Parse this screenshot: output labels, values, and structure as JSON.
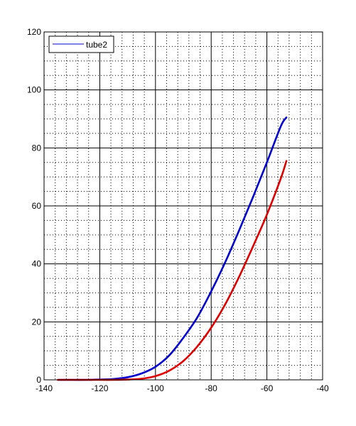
{
  "chart_data": {
    "type": "line",
    "title": "",
    "xlabel": "",
    "ylabel": "",
    "xlim": [
      -140,
      -40
    ],
    "ylim": [
      0,
      120
    ],
    "x_ticks": [
      -140,
      -120,
      -100,
      -80,
      -60,
      -40
    ],
    "y_ticks": [
      0,
      20,
      40,
      60,
      80,
      100,
      120
    ],
    "x_tick_labels": [
      "-140",
      "-120",
      "-100",
      "-80",
      "-60",
      "-40"
    ],
    "y_tick_labels": [
      "0",
      "20",
      "40",
      "60",
      "80",
      "100",
      "120"
    ],
    "grid": "major solid, minor dotted",
    "legend": {
      "placement": "top-left",
      "entries": [
        "tube2"
      ]
    },
    "series": [
      {
        "name": "tube2",
        "color": "#0000cc",
        "x": [
          -135,
          -130,
          -125,
          -120,
          -115,
          -110,
          -105,
          -100,
          -95,
          -90,
          -85,
          -80,
          -75,
          -70,
          -65,
          -60,
          -55,
          -53
        ],
        "y": [
          0,
          0,
          0,
          0.1,
          0.3,
          0.9,
          2.2,
          4.5,
          8.5,
          14.5,
          21.5,
          30.5,
          40.5,
          51.5,
          63.0,
          75.0,
          87.5,
          90.5
        ]
      },
      {
        "color": "#dd0000",
        "x": [
          -135,
          -130,
          -125,
          -120,
          -115,
          -110,
          -105,
          -100,
          -95,
          -90,
          -85,
          -80,
          -75,
          -70,
          -65,
          -60,
          -55,
          -53
        ],
        "y": [
          0,
          0,
          0,
          0,
          0,
          0.1,
          0.4,
          1.3,
          3.2,
          6.5,
          11.5,
          18.0,
          26.0,
          35.5,
          46.0,
          57.0,
          69.5,
          75.5
        ]
      }
    ]
  }
}
